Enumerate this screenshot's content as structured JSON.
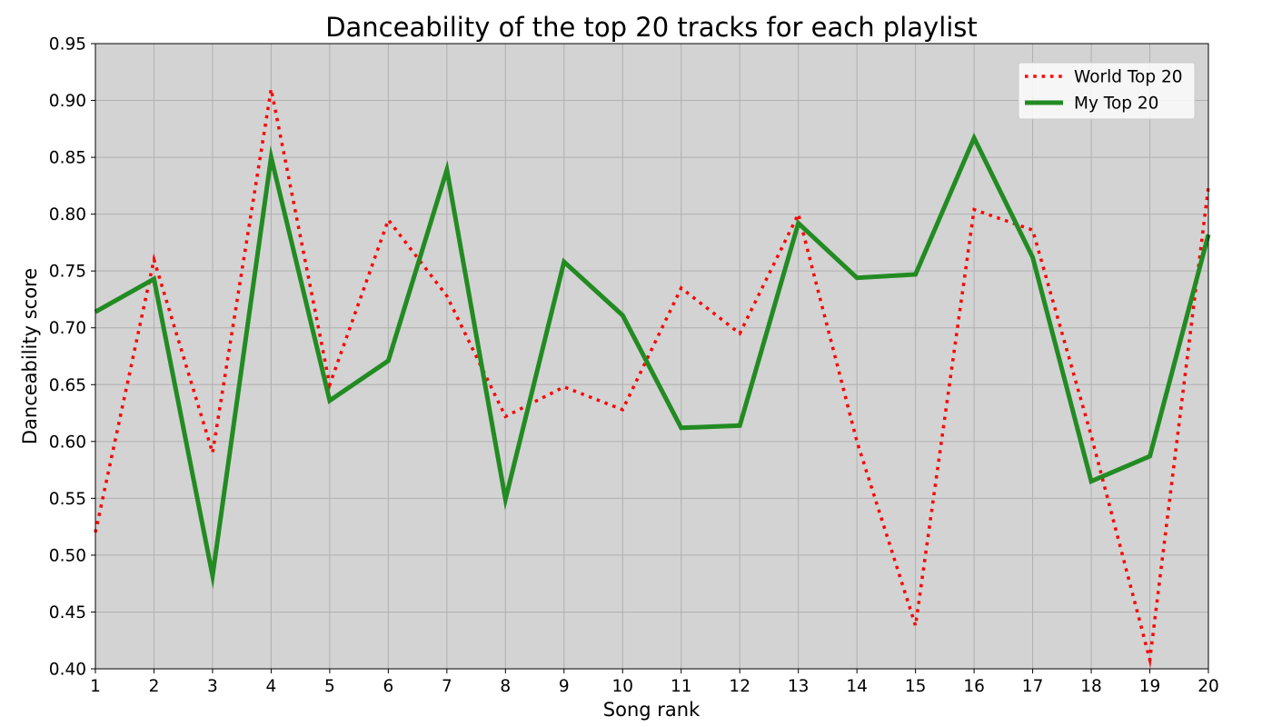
{
  "chart_data": {
    "type": "line",
    "title": "Danceability of the top 20 tracks for each playlist",
    "xlabel": "Song rank",
    "ylabel": "Danceability score",
    "x": [
      1,
      2,
      3,
      4,
      5,
      6,
      7,
      8,
      9,
      10,
      11,
      12,
      13,
      14,
      15,
      16,
      17,
      18,
      19,
      20
    ],
    "xlim": [
      1,
      20
    ],
    "ylim": [
      0.4,
      0.95
    ],
    "x_ticks": [
      "1",
      "2",
      "3",
      "4",
      "5",
      "6",
      "7",
      "8",
      "9",
      "10",
      "11",
      "12",
      "13",
      "14",
      "15",
      "16",
      "17",
      "18",
      "19",
      "20"
    ],
    "y_ticks": [
      "0.40",
      "0.45",
      "0.50",
      "0.55",
      "0.60",
      "0.65",
      "0.70",
      "0.75",
      "0.80",
      "0.85",
      "0.90",
      "0.95"
    ],
    "grid": true,
    "background": "#d3d3d3",
    "legend_position": "top-right",
    "series": [
      {
        "name": "World Top 20",
        "color": "#ff0000",
        "style": "dotted",
        "values": [
          0.52,
          0.76,
          0.59,
          0.91,
          0.65,
          0.795,
          0.728,
          0.622,
          0.648,
          0.628,
          0.735,
          0.695,
          0.8,
          0.6,
          0.438,
          0.804,
          0.786,
          0.605,
          0.408,
          0.824
        ]
      },
      {
        "name": "My Top 20",
        "color": "#228b22",
        "style": "solid",
        "values": [
          0.714,
          0.743,
          0.482,
          0.85,
          0.636,
          0.671,
          0.839,
          0.549,
          0.758,
          0.711,
          0.612,
          0.614,
          0.792,
          0.744,
          0.747,
          0.867,
          0.762,
          0.565,
          0.587,
          0.782
        ]
      }
    ]
  }
}
